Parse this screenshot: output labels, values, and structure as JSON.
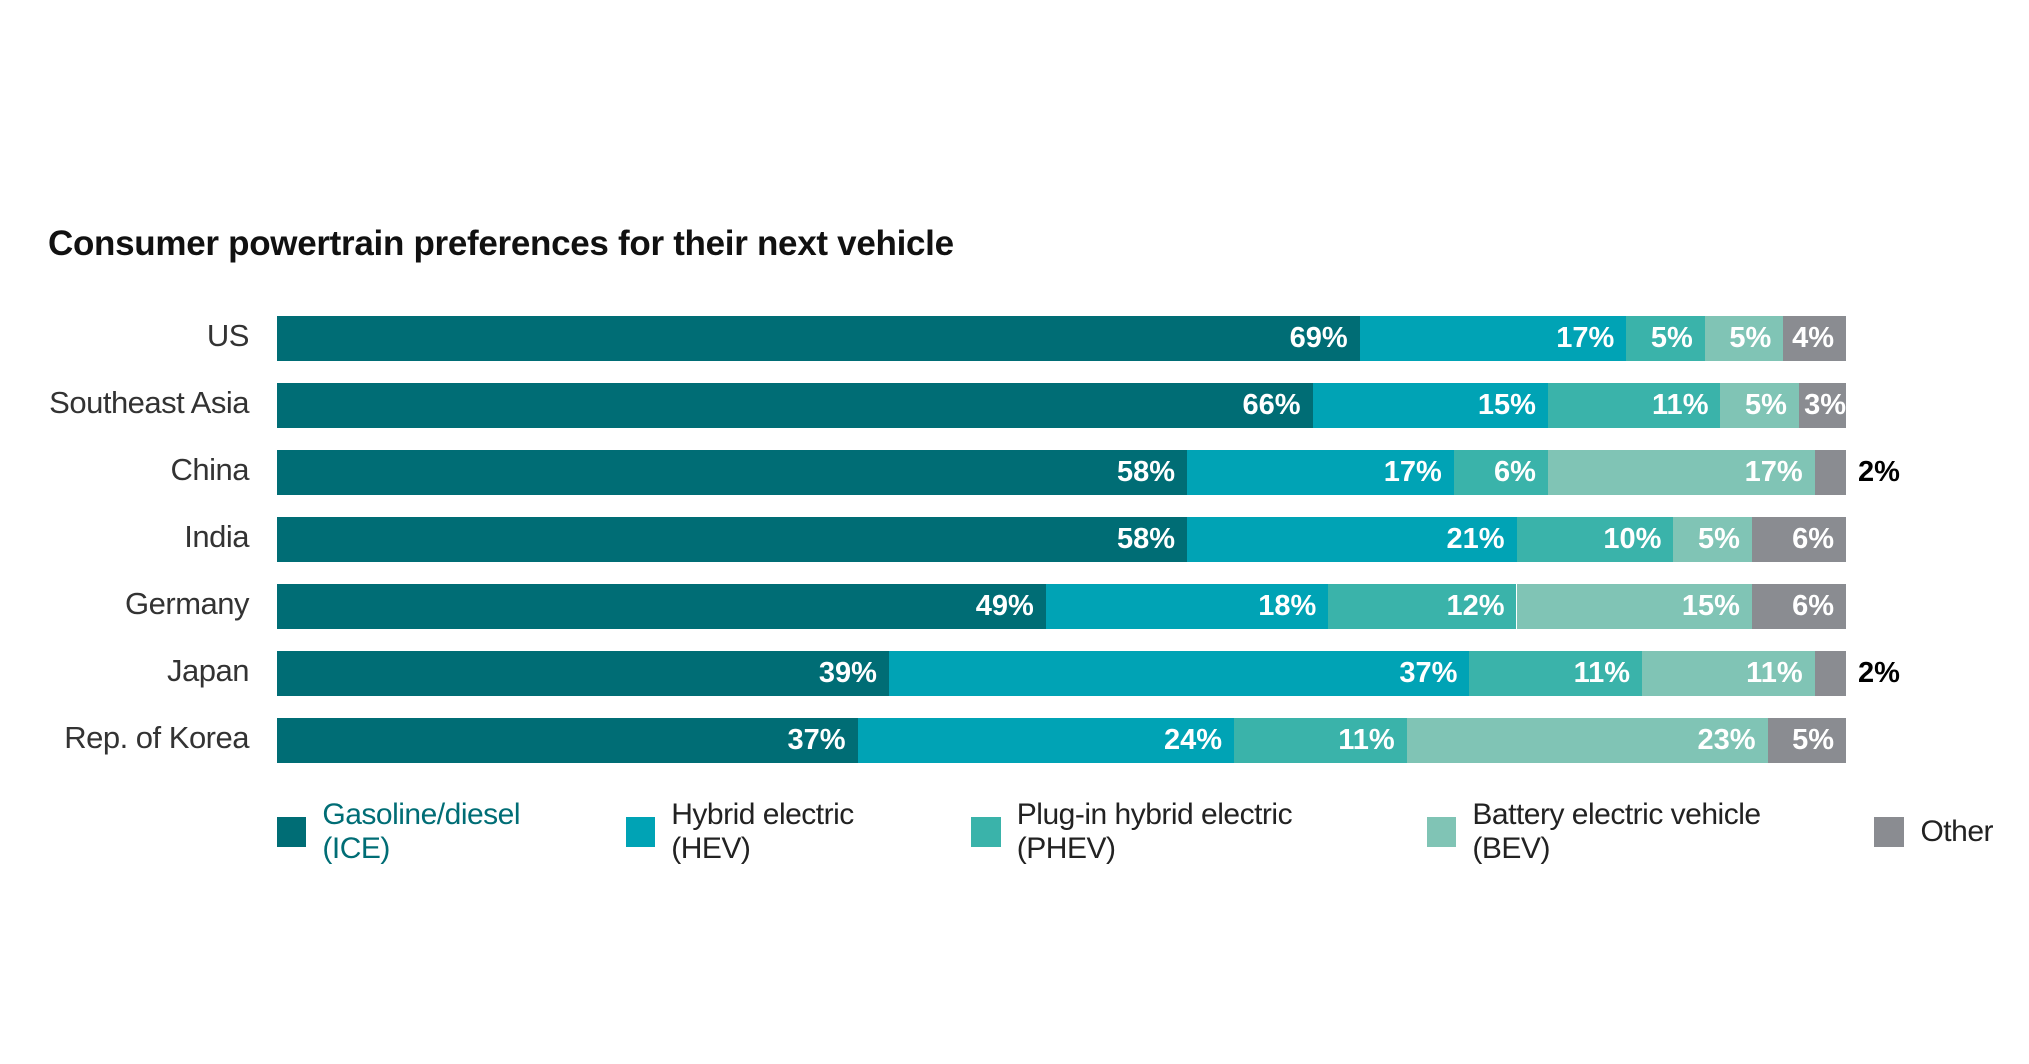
{
  "chart_data": {
    "type": "bar",
    "orientation": "horizontal",
    "stacked": true,
    "title": "Consumer powertrain preferences for their next vehicle",
    "categories": [
      "US",
      "Southeast Asia",
      "China",
      "India",
      "Germany",
      "Japan",
      "Rep. of Korea"
    ],
    "series": [
      {
        "name": "Gasoline/diesel (ICE)",
        "color": "#006d75",
        "values": [
          69,
          66,
          58,
          58,
          49,
          39,
          37
        ]
      },
      {
        "name": "Hybrid electric (HEV)",
        "color": "#00a3b5",
        "values": [
          17,
          15,
          17,
          21,
          18,
          37,
          24
        ]
      },
      {
        "name": "Plug-in hybrid electric (PHEV)",
        "color": "#3ab3aa",
        "values": [
          5,
          11,
          6,
          10,
          12,
          11,
          11
        ]
      },
      {
        "name": "Battery electric vehicle (BEV)",
        "color": "#80c4b5",
        "values": [
          5,
          5,
          17,
          5,
          15,
          11,
          23
        ]
      },
      {
        "name": "Other",
        "color": "#8a8c91",
        "values": [
          4,
          3,
          2,
          6,
          6,
          2,
          5
        ]
      }
    ],
    "value_suffix": "%",
    "xlim": [
      0,
      100
    ],
    "grid": false,
    "legend_position": "bottom",
    "legend_first_label_color": "#006d75"
  }
}
